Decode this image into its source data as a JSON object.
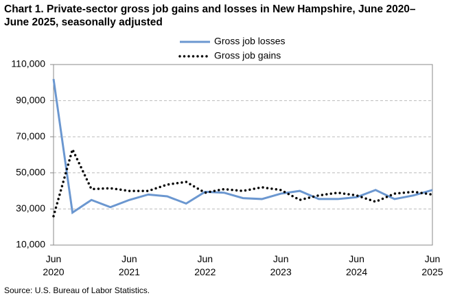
{
  "chart_data": {
    "type": "line",
    "title": "Chart 1. Private-sector gross job gains and losses in New Hampshire, June 2020–June 2025, seasonally adjusted",
    "source": "Source: U.S. Bureau of Labor Statistics.",
    "categories": [
      "Jun 2020",
      null,
      null,
      null,
      "Jun 2021",
      null,
      null,
      null,
      "Jun 2022",
      null,
      null,
      null,
      "Jun 2023",
      null,
      null,
      null,
      "Jun 2024",
      null,
      null,
      null,
      "Jun 2025"
    ],
    "series": [
      {
        "name": "Gross job losses",
        "color": "#6b97d0",
        "style": "solid",
        "values": [
          102000,
          28000,
          35000,
          31000,
          35000,
          38000,
          37000,
          33000,
          39500,
          39000,
          36000,
          35500,
          38500,
          40000,
          35500,
          35500,
          36500,
          40500,
          35500,
          37500,
          40500
        ]
      },
      {
        "name": "Gross job gains",
        "color": "#000000",
        "style": "dotted",
        "values": [
          26000,
          63000,
          41000,
          41500,
          40000,
          40000,
          43500,
          45000,
          39000,
          41000,
          40000,
          42000,
          40500,
          35000,
          37500,
          39000,
          37500,
          34000,
          38500,
          39500,
          38000
        ]
      }
    ],
    "ylim": [
      10000,
      110000
    ],
    "yticks": [
      {
        "value": 10000,
        "label": "10,000"
      },
      {
        "value": 30000,
        "label": "30,000"
      },
      {
        "value": 50000,
        "label": "50,000"
      },
      {
        "value": 70000,
        "label": "70,000"
      },
      {
        "value": 90000,
        "label": "90,000"
      },
      {
        "value": 110000,
        "label": "110,000"
      }
    ],
    "grid": true,
    "legend": "top"
  }
}
